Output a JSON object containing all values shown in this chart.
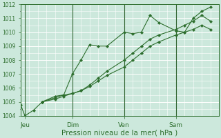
{
  "background_color": "#cce8dc",
  "plot_bg_color": "#cce8dc",
  "grid_color": "#ffffff",
  "line_color": "#2d6e2d",
  "xlim": [
    0,
    23
  ],
  "ylim": [
    1004,
    1012
  ],
  "yticks": [
    1004,
    1005,
    1006,
    1007,
    1008,
    1009,
    1010,
    1011,
    1012
  ],
  "xtick_labels": [
    "Jeu",
    "Dim",
    "Ven",
    "Sam"
  ],
  "xtick_positions": [
    0.5,
    6,
    12,
    18
  ],
  "xlabel": "Pression niveau de la mer( hPa )",
  "series": [
    {
      "x": [
        0,
        0.5,
        1.5,
        2.5,
        4,
        5,
        6,
        7,
        8,
        9,
        10,
        12,
        13,
        14,
        15,
        16,
        18,
        19,
        20,
        21,
        22
      ],
      "y": [
        1004.8,
        1004.0,
        1004.4,
        1005.0,
        1005.4,
        1005.5,
        1007.0,
        1008.0,
        1009.1,
        1009.0,
        1009.0,
        1010.0,
        1009.9,
        1010.0,
        1011.2,
        1010.7,
        1010.1,
        1010.0,
        1011.0,
        1011.5,
        1011.8
      ]
    },
    {
      "x": [
        2.5,
        4,
        5,
        6,
        7,
        8,
        9,
        10,
        12,
        13,
        14,
        15,
        16,
        18,
        19,
        20,
        21,
        22
      ],
      "y": [
        1005.0,
        1005.3,
        1005.5,
        1005.6,
        1005.8,
        1006.2,
        1006.7,
        1007.2,
        1008.0,
        1008.5,
        1009.0,
        1009.5,
        1009.8,
        1010.2,
        1010.5,
        1010.8,
        1011.2,
        1010.8
      ]
    },
    {
      "x": [
        2.5,
        4,
        5,
        6,
        7,
        8,
        9,
        10,
        12,
        13,
        14,
        15,
        16,
        18,
        19,
        20,
        21,
        22
      ],
      "y": [
        1005.0,
        1005.2,
        1005.4,
        1005.6,
        1005.8,
        1006.1,
        1006.5,
        1006.9,
        1007.5,
        1008.0,
        1008.5,
        1009.0,
        1009.3,
        1009.8,
        1010.0,
        1010.2,
        1010.5,
        1010.2
      ]
    }
  ],
  "vline_positions": [
    0.5,
    6,
    12,
    18
  ],
  "vline_color": "#336633",
  "ytick_fontsize": 5.5,
  "xtick_fontsize": 6.5,
  "xlabel_fontsize": 7.5
}
